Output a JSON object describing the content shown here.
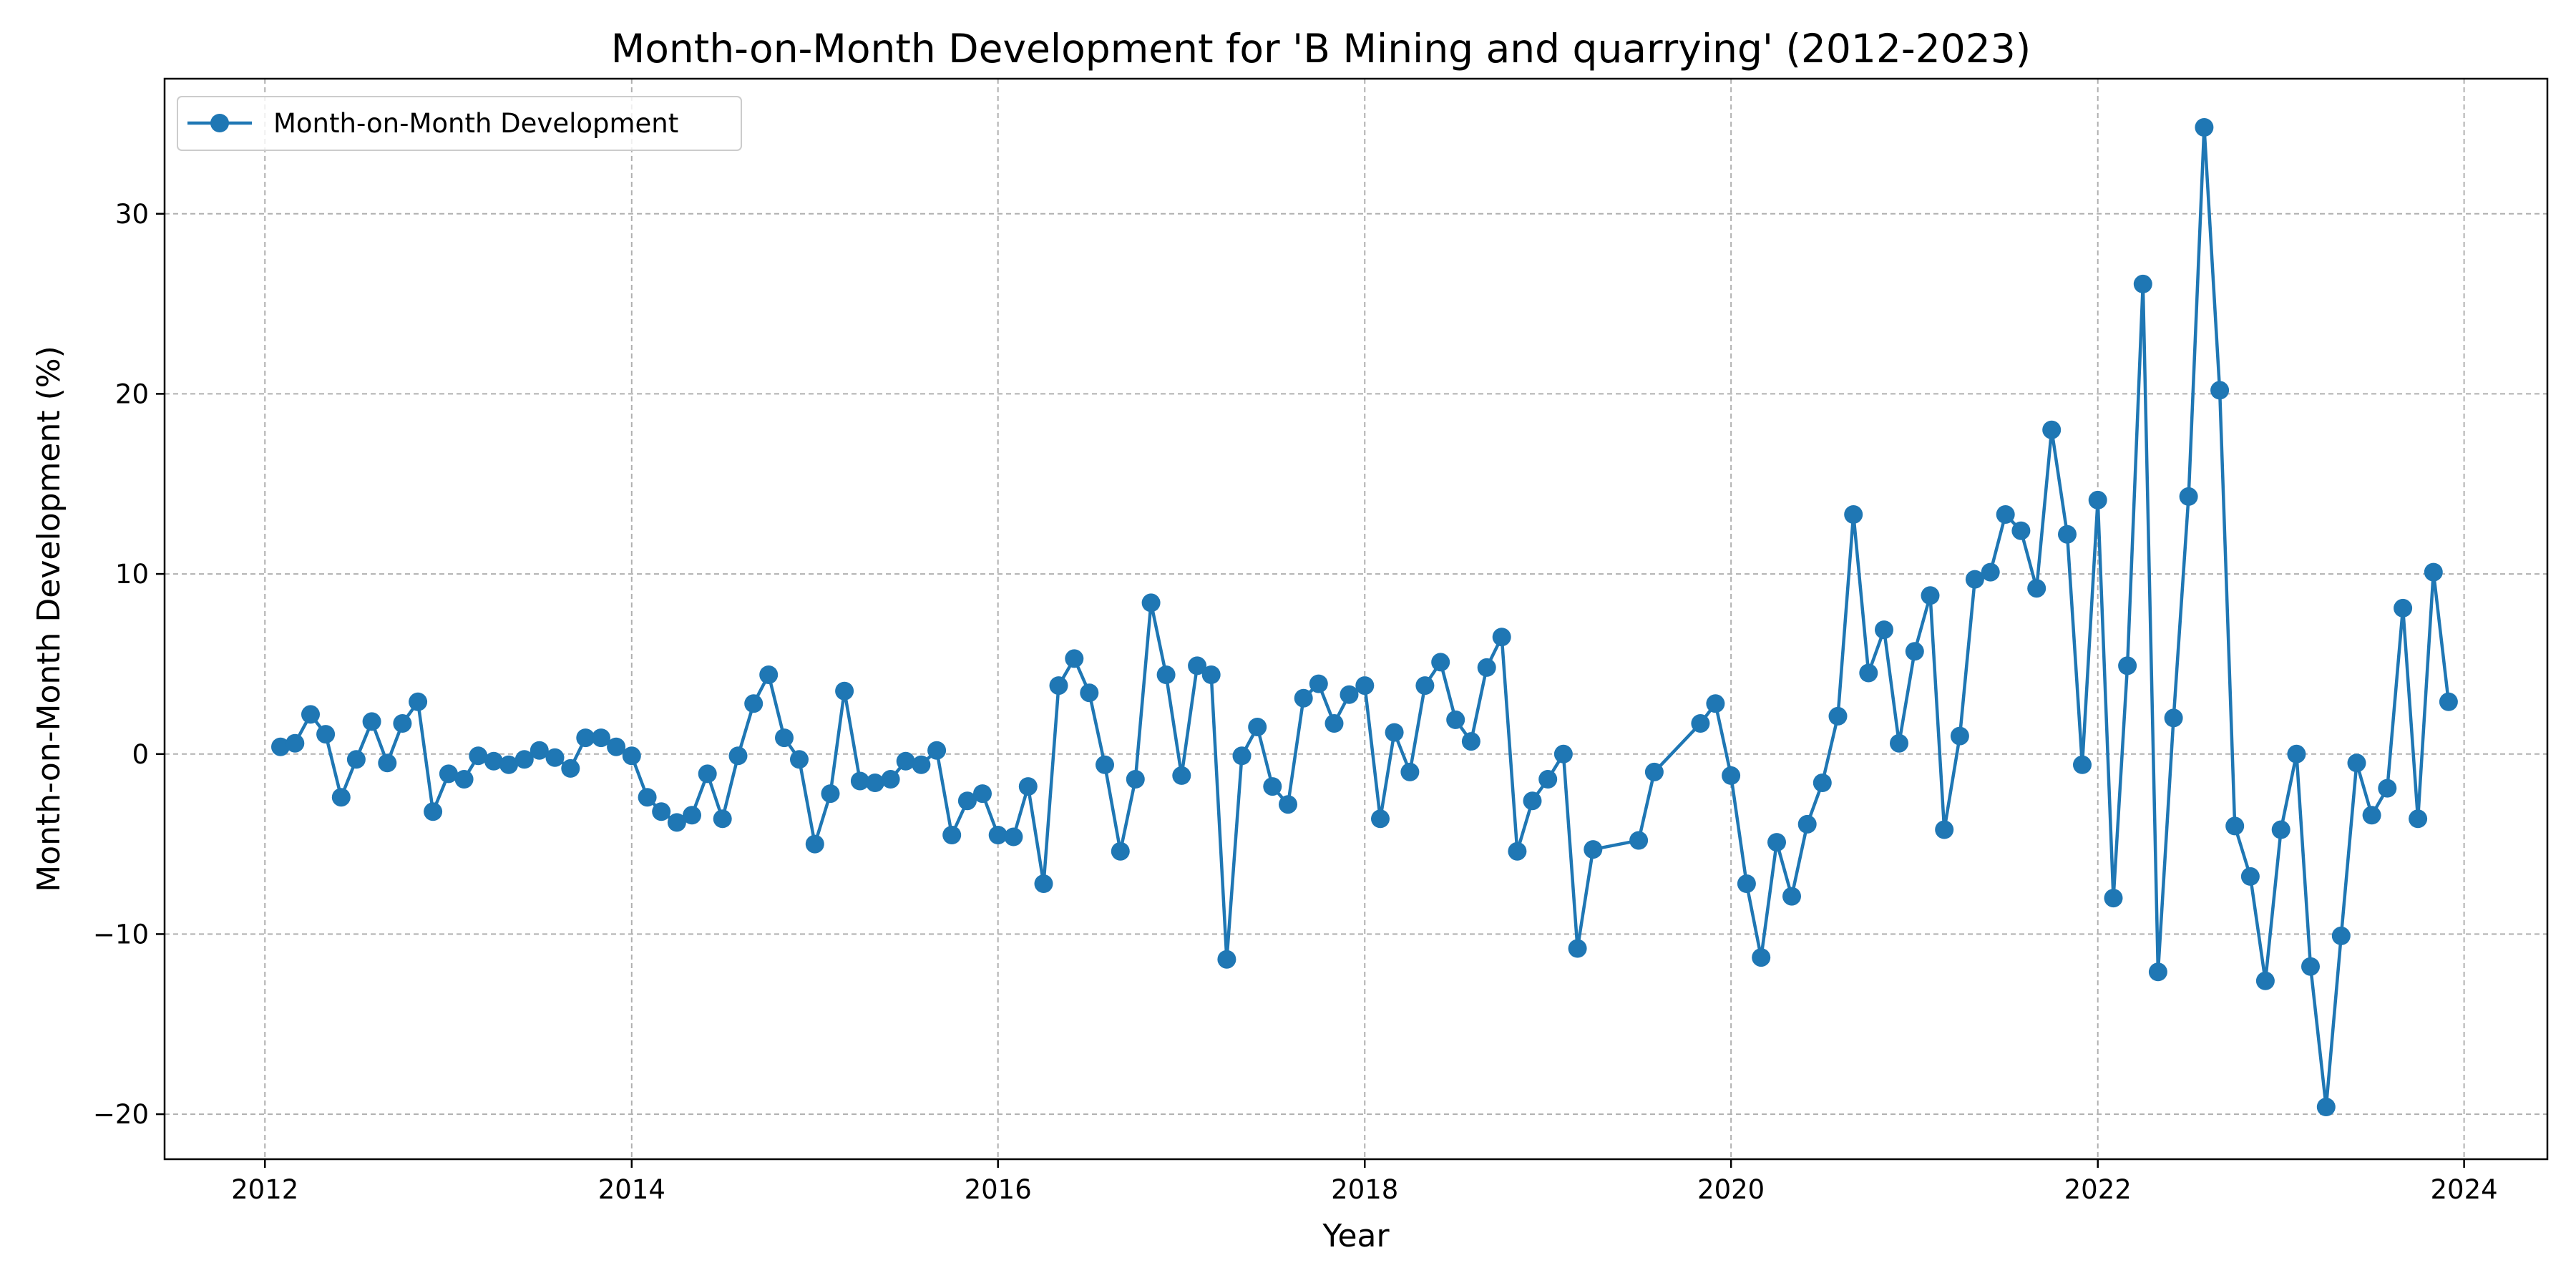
{
  "chart_data": {
    "type": "line",
    "title": "Month-on-Month Development for 'B Mining and quarrying' (2012-2023)",
    "xlabel": "Year",
    "ylabel": "Month-on-Month Development (%)",
    "xlim": [
      "2011-06-15",
      "2024-06-15"
    ],
    "ylim": [
      -22.5,
      37.5
    ],
    "xticks": [
      "2012",
      "2014",
      "2016",
      "2018",
      "2020",
      "2022",
      "2024"
    ],
    "yticks": [
      -20,
      -10,
      0,
      10,
      20,
      30
    ],
    "ytick_labels": [
      "−20",
      "−10",
      "0",
      "10",
      "20",
      "30"
    ],
    "grid": true,
    "legend": "top-left",
    "colors": {
      "series": "#1f77b4"
    },
    "series": [
      {
        "name": "Month-on-Month Development",
        "points": [
          [
            "2012-02-01",
            0.4
          ],
          [
            "2012-03-01",
            0.6
          ],
          [
            "2012-04-01",
            2.2
          ],
          [
            "2012-05-01",
            1.1
          ],
          [
            "2012-06-01",
            -2.4
          ],
          [
            "2012-07-01",
            -0.3
          ],
          [
            "2012-08-01",
            1.8
          ],
          [
            "2012-09-01",
            -0.5
          ],
          [
            "2012-10-01",
            1.7
          ],
          [
            "2012-11-01",
            2.9
          ],
          [
            "2012-12-01",
            -3.2
          ],
          [
            "2013-01-01",
            -1.1
          ],
          [
            "2013-02-01",
            -1.4
          ],
          [
            "2013-03-01",
            -0.1
          ],
          [
            "2013-04-01",
            -0.4
          ],
          [
            "2013-05-01",
            -0.6
          ],
          [
            "2013-06-01",
            -0.3
          ],
          [
            "2013-07-01",
            0.2
          ],
          [
            "2013-08-01",
            -0.2
          ],
          [
            "2013-09-01",
            -0.8
          ],
          [
            "2013-10-01",
            0.9
          ],
          [
            "2013-11-01",
            0.9
          ],
          [
            "2013-12-01",
            0.4
          ],
          [
            "2014-01-01",
            -0.1
          ],
          [
            "2014-02-01",
            -2.4
          ],
          [
            "2014-03-01",
            -3.2
          ],
          [
            "2014-04-01",
            -3.8
          ],
          [
            "2014-05-01",
            -3.4
          ],
          [
            "2014-06-01",
            -1.1
          ],
          [
            "2014-07-01",
            -3.6
          ],
          [
            "2014-08-01",
            -0.1
          ],
          [
            "2014-09-01",
            2.8
          ],
          [
            "2014-10-01",
            4.4
          ],
          [
            "2014-11-01",
            0.9
          ],
          [
            "2014-12-01",
            -0.3
          ],
          [
            "2015-01-01",
            -5.0
          ],
          [
            "2015-02-01",
            -2.2
          ],
          [
            "2015-03-01",
            3.5
          ],
          [
            "2015-04-01",
            -1.5
          ],
          [
            "2015-05-01",
            -1.6
          ],
          [
            "2015-06-01",
            -1.4
          ],
          [
            "2015-07-01",
            -0.4
          ],
          [
            "2015-08-01",
            -0.6
          ],
          [
            "2015-09-01",
            0.2
          ],
          [
            "2015-10-01",
            -4.5
          ],
          [
            "2015-11-01",
            -2.6
          ],
          [
            "2015-12-01",
            -2.2
          ],
          [
            "2016-01-01",
            -4.5
          ],
          [
            "2016-02-01",
            -4.6
          ],
          [
            "2016-03-01",
            -1.8
          ],
          [
            "2016-04-01",
            -7.2
          ],
          [
            "2016-05-01",
            3.8
          ],
          [
            "2016-06-01",
            5.3
          ],
          [
            "2016-07-01",
            3.4
          ],
          [
            "2016-08-01",
            -0.6
          ],
          [
            "2016-09-01",
            -5.4
          ],
          [
            "2016-10-01",
            -1.4
          ],
          [
            "2016-11-01",
            8.4
          ],
          [
            "2016-12-01",
            4.4
          ],
          [
            "2017-01-01",
            -1.2
          ],
          [
            "2017-02-01",
            4.9
          ],
          [
            "2017-03-01",
            4.4
          ],
          [
            "2017-04-01",
            -11.4
          ],
          [
            "2017-05-01",
            -0.1
          ],
          [
            "2017-06-01",
            1.5
          ],
          [
            "2017-07-01",
            -1.8
          ],
          [
            "2017-08-01",
            -2.8
          ],
          [
            "2017-09-01",
            3.1
          ],
          [
            "2017-10-01",
            3.9
          ],
          [
            "2017-11-01",
            1.7
          ],
          [
            "2017-12-01",
            3.3
          ],
          [
            "2018-01-01",
            3.8
          ],
          [
            "2018-02-01",
            -3.6
          ],
          [
            "2018-03-01",
            1.2
          ],
          [
            "2018-04-01",
            -1.0
          ],
          [
            "2018-05-01",
            3.8
          ],
          [
            "2018-06-01",
            5.1
          ],
          [
            "2018-07-01",
            1.9
          ],
          [
            "2018-08-01",
            0.7
          ],
          [
            "2018-09-01",
            4.8
          ],
          [
            "2018-10-01",
            6.5
          ],
          [
            "2018-11-01",
            -5.4
          ],
          [
            "2018-12-01",
            -2.6
          ],
          [
            "2019-01-01",
            -1.4
          ],
          [
            "2019-02-01",
            0.0
          ],
          [
            "2019-03-01",
            -10.8
          ],
          [
            "2019-04-01",
            -5.3
          ],
          [
            "2019-07-01",
            -4.8
          ],
          [
            "2019-08-01",
            -1.0
          ],
          [
            "2019-11-01",
            1.7
          ],
          [
            "2019-12-01",
            2.8
          ],
          [
            "2020-01-01",
            -1.2
          ],
          [
            "2020-02-01",
            -7.2
          ],
          [
            "2020-03-01",
            -11.3
          ],
          [
            "2020-04-01",
            -4.9
          ],
          [
            "2020-05-01",
            -7.9
          ],
          [
            "2020-06-01",
            -3.9
          ],
          [
            "2020-07-01",
            -1.6
          ],
          [
            "2020-08-01",
            2.1
          ],
          [
            "2020-09-01",
            13.3
          ],
          [
            "2020-10-01",
            4.5
          ],
          [
            "2020-11-01",
            6.9
          ],
          [
            "2020-12-01",
            0.6
          ],
          [
            "2021-01-01",
            5.7
          ],
          [
            "2021-02-01",
            8.8
          ],
          [
            "2021-03-01",
            -4.2
          ],
          [
            "2021-04-01",
            1.0
          ],
          [
            "2021-05-01",
            9.7
          ],
          [
            "2021-06-01",
            10.1
          ],
          [
            "2021-07-01",
            13.3
          ],
          [
            "2021-08-01",
            12.4
          ],
          [
            "2021-09-01",
            9.2
          ],
          [
            "2021-10-01",
            18.0
          ],
          [
            "2021-11-01",
            12.2
          ],
          [
            "2021-12-01",
            -0.6
          ],
          [
            "2022-01-01",
            14.1
          ],
          [
            "2022-02-01",
            -8.0
          ],
          [
            "2022-03-01",
            4.9
          ],
          [
            "2022-04-01",
            26.1
          ],
          [
            "2022-05-01",
            -12.1
          ],
          [
            "2022-06-01",
            2.0
          ],
          [
            "2022-07-01",
            14.3
          ],
          [
            "2022-08-01",
            34.8
          ],
          [
            "2022-09-01",
            20.2
          ],
          [
            "2022-10-01",
            -4.0
          ],
          [
            "2022-11-01",
            -6.8
          ],
          [
            "2022-12-01",
            -12.6
          ],
          [
            "2023-01-01",
            -4.2
          ],
          [
            "2023-02-01",
            0.0
          ],
          [
            "2023-03-01",
            -11.8
          ],
          [
            "2023-04-01",
            -19.6
          ],
          [
            "2023-05-01",
            -10.1
          ],
          [
            "2023-06-01",
            -0.5
          ],
          [
            "2023-07-01",
            -3.4
          ],
          [
            "2023-08-01",
            -1.9
          ],
          [
            "2023-09-01",
            8.1
          ],
          [
            "2023-10-01",
            -3.6
          ],
          [
            "2023-11-01",
            10.1
          ],
          [
            "2023-12-01",
            2.9
          ]
        ]
      }
    ]
  }
}
